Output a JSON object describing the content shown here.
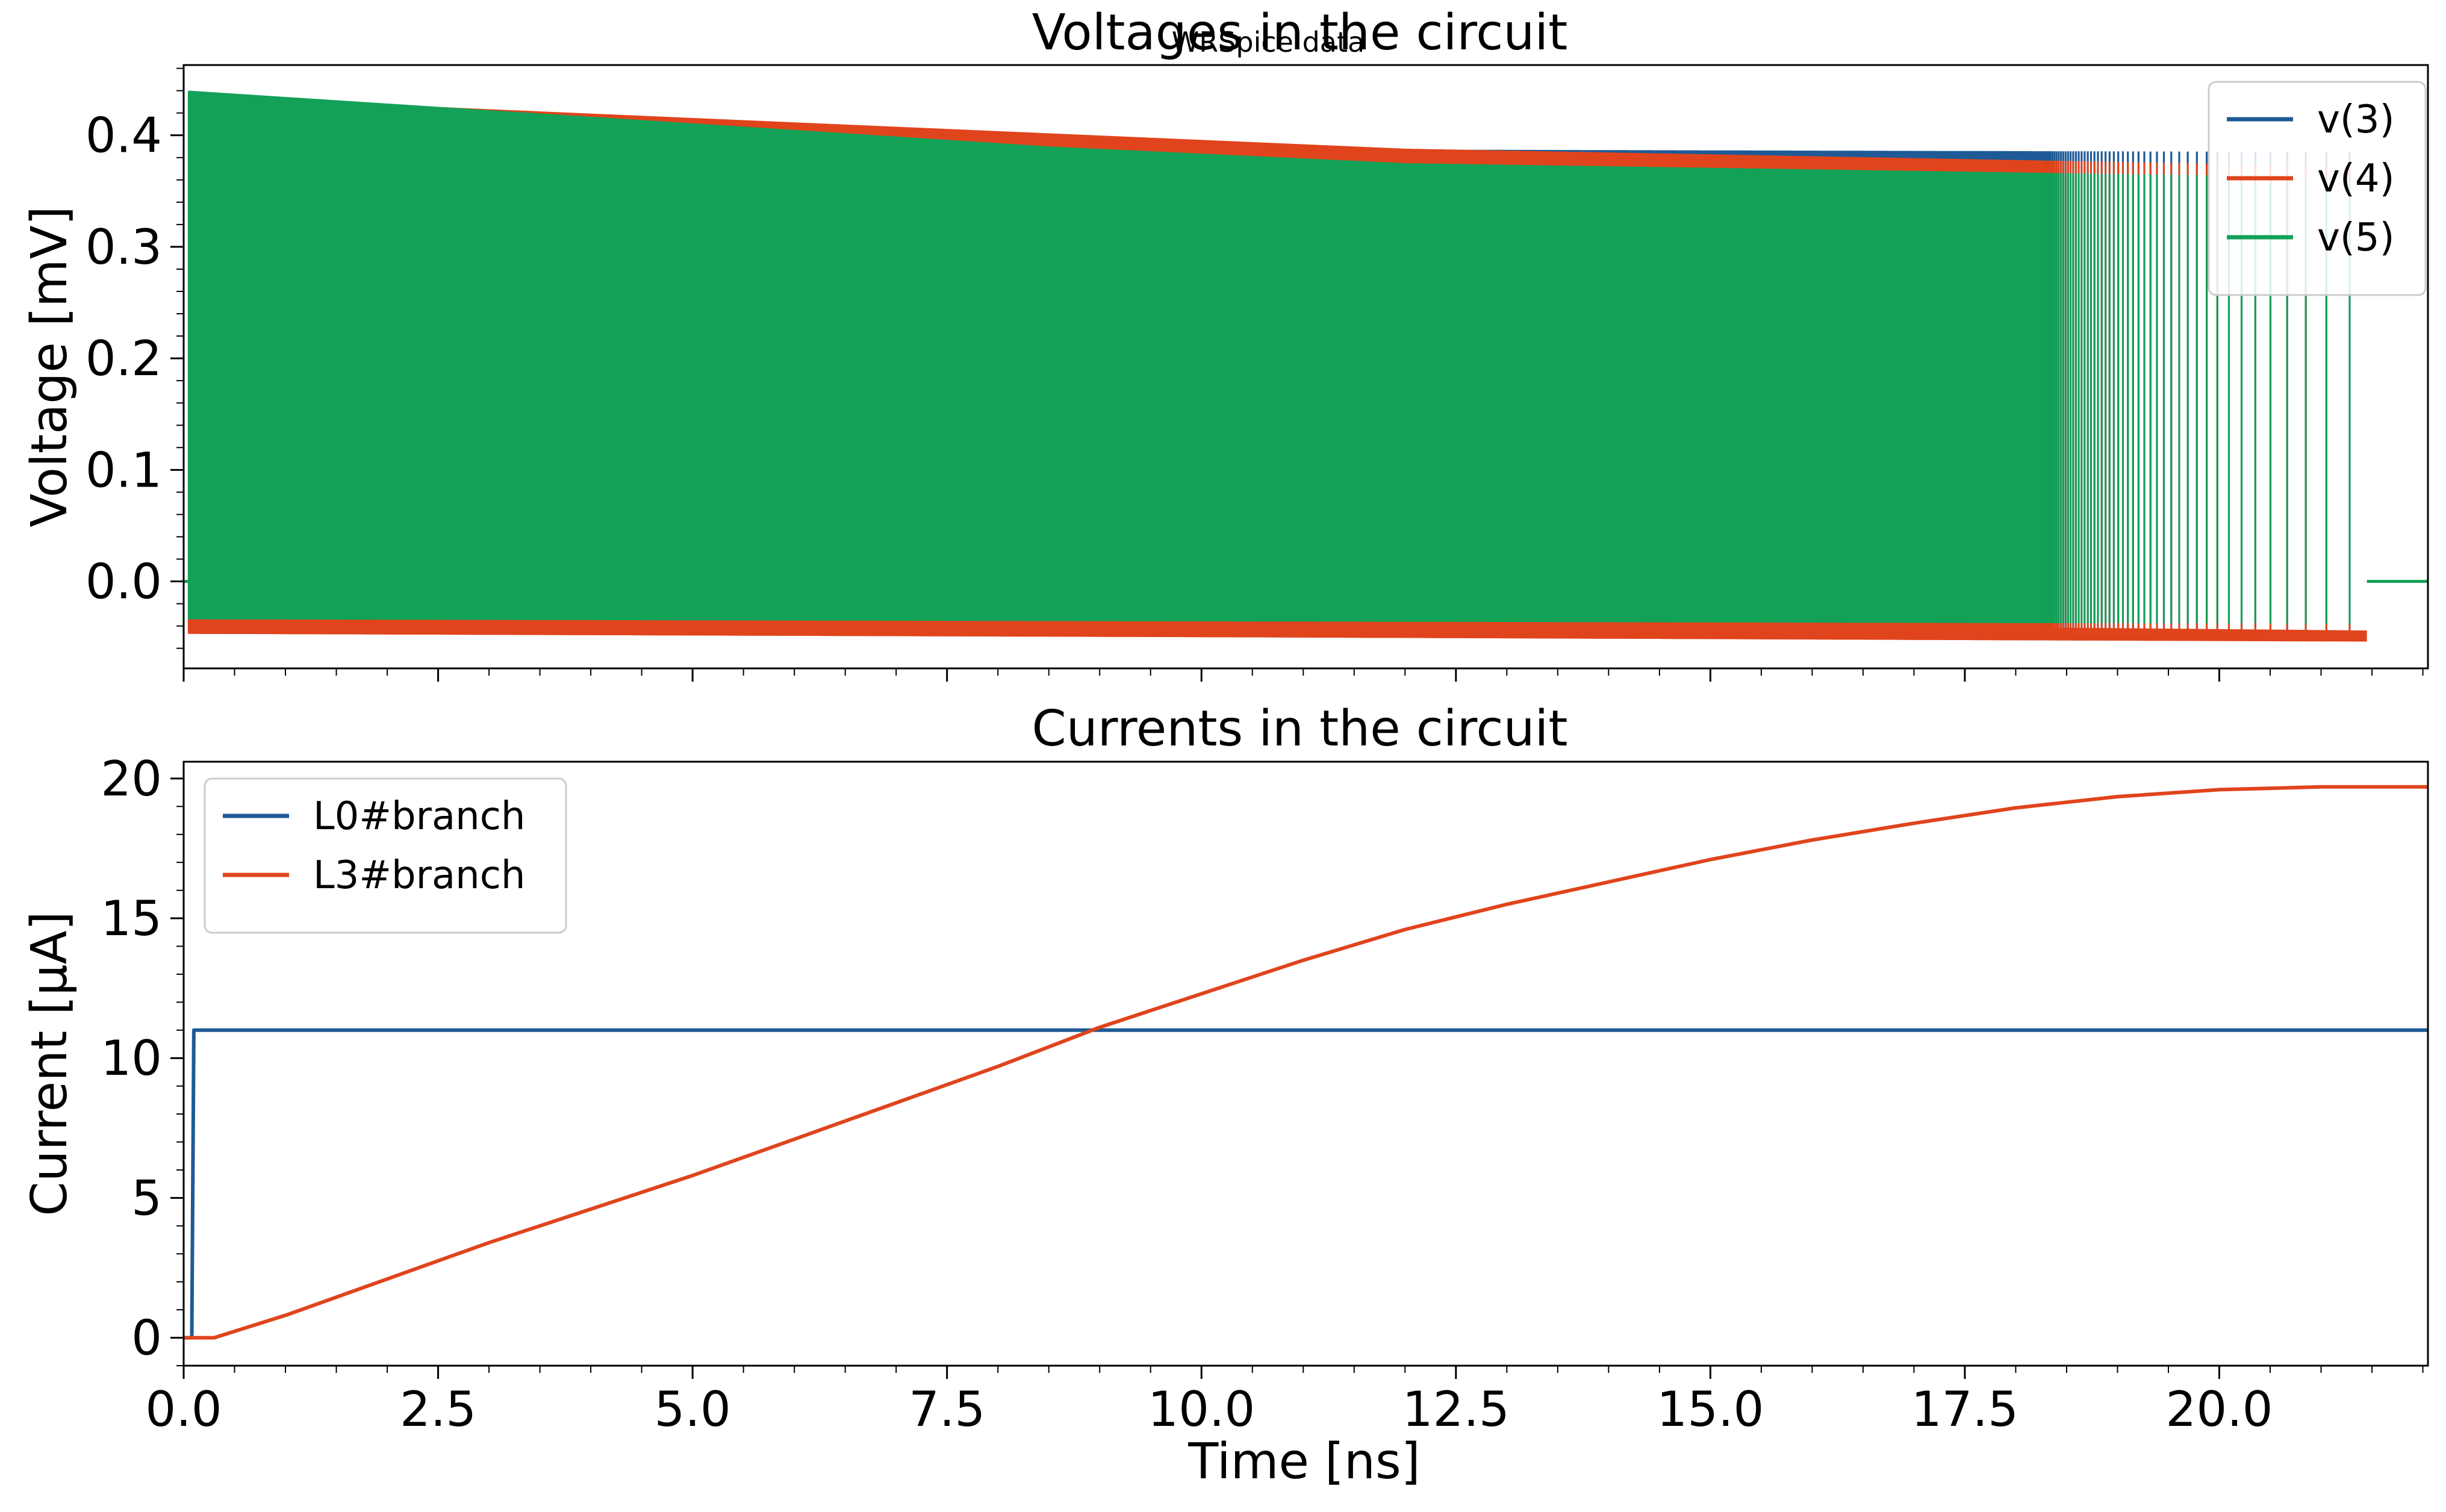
{
  "figure": {
    "suptitle": "WRSpice data",
    "xlabel": "Time [ns]"
  },
  "chart_data": [
    {
      "type": "line",
      "title": "Voltages in the circuit",
      "ylabel": "Voltage [mV]",
      "xlim": [
        0.0,
        22.05
      ],
      "ylim": [
        -0.078,
        0.463
      ],
      "xticks": [
        "0.0",
        "2.5",
        "5.0",
        "7.5",
        "10.0",
        "12.5",
        "15.0",
        "17.5",
        "20.0"
      ],
      "xtick_values": [
        0,
        2.5,
        5,
        7.5,
        10,
        12.5,
        15,
        17.5,
        20
      ],
      "yticks": [
        "0.0",
        "0.1",
        "0.2",
        "0.3",
        "0.4"
      ],
      "ytick_values": [
        0.0,
        0.1,
        0.2,
        0.3,
        0.4
      ],
      "legend_position": "top-right",
      "series": [
        {
          "name": "v(3)",
          "color": "#1f5a96",
          "kind": "oscillating-envelope",
          "high_x": [
            0.05,
            8.5,
            21.45
          ],
          "high_y": [
            0.435,
            0.388,
            0.385
          ],
          "low_x": [
            0.05,
            21.45
          ],
          "low_y": [
            -0.045,
            -0.05
          ],
          "end_x": 21.45
        },
        {
          "name": "v(4)",
          "color": "#e0441c",
          "kind": "oscillating-envelope",
          "high_x": [
            0.05,
            12.0,
            21.45
          ],
          "high_y": [
            0.435,
            0.388,
            0.372
          ],
          "low_x": [
            0.05,
            10.0,
            21.45
          ],
          "low_y": [
            -0.047,
            -0.05,
            -0.054
          ],
          "band_top_x": [
            0.1,
            5.0,
            12.0,
            21.45
          ],
          "band_top_y": [
            -0.027,
            -0.032,
            -0.036,
            -0.044
          ],
          "end_x": 21.45
        },
        {
          "name": "v(5)",
          "color": "#12a157",
          "kind": "oscillating-envelope",
          "high_x": [
            0.05,
            8.5,
            12.0,
            21.45
          ],
          "high_y": [
            0.44,
            0.39,
            0.375,
            0.362
          ],
          "low_x": [
            0.05,
            21.45
          ],
          "low_y": [
            -0.034,
            -0.038
          ],
          "end_x": 21.45,
          "final_value": 0.0
        }
      ]
    },
    {
      "type": "line",
      "title": "Currents in the circuit",
      "ylabel": "Current [μA]",
      "xlabel": "Time [ns]",
      "xlim": [
        0.0,
        22.05
      ],
      "ylim": [
        -1.0,
        20.6
      ],
      "xticks": [
        "0.0",
        "2.5",
        "5.0",
        "7.5",
        "10.0",
        "12.5",
        "15.0",
        "17.5",
        "20.0"
      ],
      "xtick_values": [
        0,
        2.5,
        5,
        7.5,
        10,
        12.5,
        15,
        17.5,
        20
      ],
      "yticks": [
        "0",
        "5",
        "10",
        "15",
        "20"
      ],
      "ytick_values": [
        0,
        5,
        10,
        15,
        20
      ],
      "legend_position": "top-left",
      "series": [
        {
          "name": "L0#branch",
          "color": "#1f5a96",
          "x": [
            0.0,
            0.08,
            0.1,
            22.05
          ],
          "y": [
            0.0,
            0.0,
            11.0,
            11.0
          ]
        },
        {
          "name": "L3#branch",
          "color": "#e0441c",
          "x": [
            0.0,
            0.3,
            1.0,
            2.0,
            3.0,
            4.0,
            5.0,
            6.0,
            7.0,
            8.0,
            9.0,
            10.0,
            11.0,
            12.0,
            13.0,
            14.0,
            15.0,
            16.0,
            17.0,
            18.0,
            19.0,
            20.0,
            21.0,
            22.05
          ],
          "y": [
            0.0,
            0.0,
            0.8,
            2.1,
            3.4,
            4.6,
            5.8,
            7.1,
            8.4,
            9.7,
            11.1,
            12.3,
            13.5,
            14.6,
            15.5,
            16.3,
            17.1,
            17.8,
            18.4,
            18.95,
            19.35,
            19.6,
            19.7,
            19.7
          ]
        }
      ]
    }
  ]
}
